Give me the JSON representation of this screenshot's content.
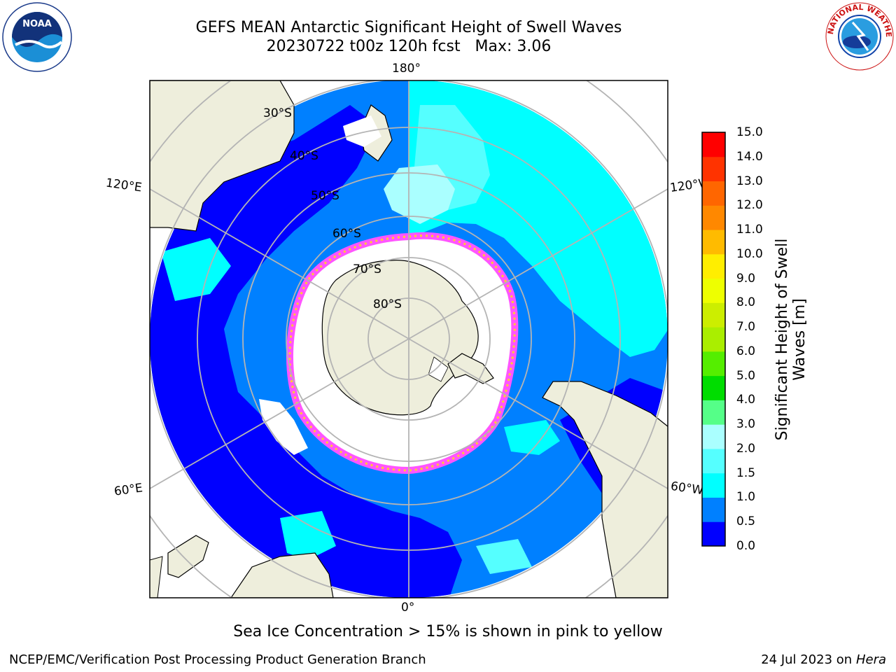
{
  "title": {
    "line1": "GEFS MEAN Antarctic Significant Height of Swell Waves",
    "line2": "20230722 t00z 120h fcst   Max: 3.06"
  },
  "map": {
    "projection": "south-polar-stereographic",
    "lon_labels": [
      "180°",
      "120°E",
      "120°W",
      "60°E",
      "60°W",
      "0°"
    ],
    "lat_labels": [
      "30°S",
      "40°S",
      "50°S",
      "60°S",
      "70°S",
      "80°S"
    ],
    "colors": {
      "land": "#eeeedc",
      "ice": "#ffffff",
      "ice_edge": "#ff55ff",
      "ice_edge_inner": "#ffcc33",
      "grid": "#b4b4b4"
    }
  },
  "colorbar": {
    "label": "Significant Height of Swell Waves [m]",
    "ticks": [
      "0.0",
      "0.5",
      "1.0",
      "1.5",
      "2.0",
      "3.0",
      "4.0",
      "5.0",
      "6.0",
      "7.0",
      "8.0",
      "9.0",
      "10.0",
      "11.0",
      "12.0",
      "13.0",
      "14.0",
      "15.0"
    ],
    "colors": [
      "#0000ff",
      "#0080ff",
      "#00ffff",
      "#55ffff",
      "#aaffff",
      "#55ff88",
      "#00dd00",
      "#55ee00",
      "#aaee00",
      "#ccee00",
      "#eeff00",
      "#ffee00",
      "#ffbb00",
      "#ff8800",
      "#ff6600",
      "#ff3300",
      "#ff0000"
    ]
  },
  "note": "Sea Ice Concentration > 15% is shown in pink to yellow",
  "footer": {
    "left": "NCEP/EMC/Verification Post Processing Product Generation Branch",
    "right_prefix": "24 Jul 2023 on ",
    "right_host": "Hera"
  },
  "logos": {
    "left_text": "NOAA",
    "right_text": "NATIONAL WEATHER SERVICE"
  }
}
